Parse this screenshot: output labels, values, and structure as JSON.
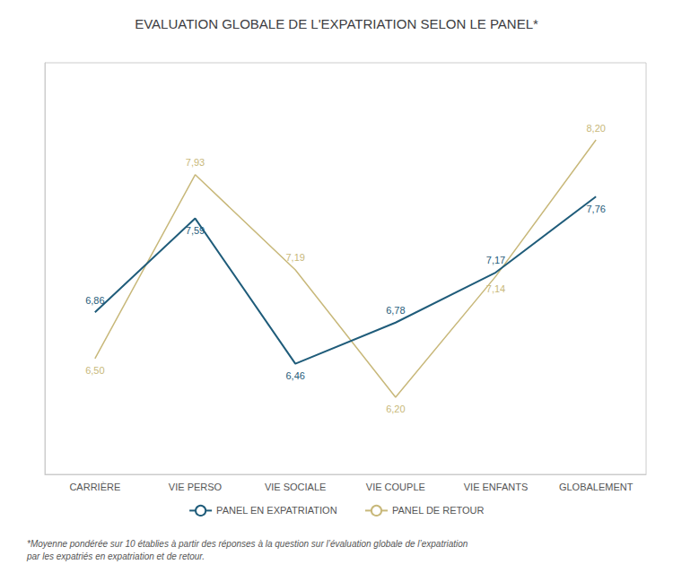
{
  "chart_data": {
    "type": "line",
    "title": "EVALUATION GLOBALE DE L'EXPATRIATION SELON LE PANEL*",
    "categories": [
      "CARRIÈRE",
      "VIE PERSO",
      "VIE SOCIALE",
      "VIE COUPLE",
      "VIE ENFANTS",
      "GLOBALEMENT"
    ],
    "series": [
      {
        "name": "PANEL EN EXPATRIATION",
        "color": "#1f5c7a",
        "values": [
          6.86,
          7.59,
          6.46,
          6.78,
          7.17,
          7.76
        ],
        "value_labels": [
          "6,86",
          "7,59",
          "6,46",
          "6,78",
          "7,17",
          "7,76"
        ]
      },
      {
        "name": "PANEL DE RETOUR",
        "color": "#c8b87a",
        "values": [
          6.5,
          7.93,
          7.19,
          6.2,
          7.14,
          8.2
        ],
        "value_labels": [
          "6,50",
          "7,93",
          "7,19",
          "6,20",
          "7,14",
          "8,20"
        ]
      }
    ],
    "ylim": [
      5.6,
      8.8
    ],
    "tick_labels": "x",
    "grid": false,
    "legend": "bottom",
    "data_labels": true,
    "line_style": "solid",
    "annotations": [
      "*Moyenne pondérée sur 10 établies à partir des réponses à la question sur l’évaluation globale de l’expatriation\npar les expatriés en expatriation et de retour."
    ]
  }
}
